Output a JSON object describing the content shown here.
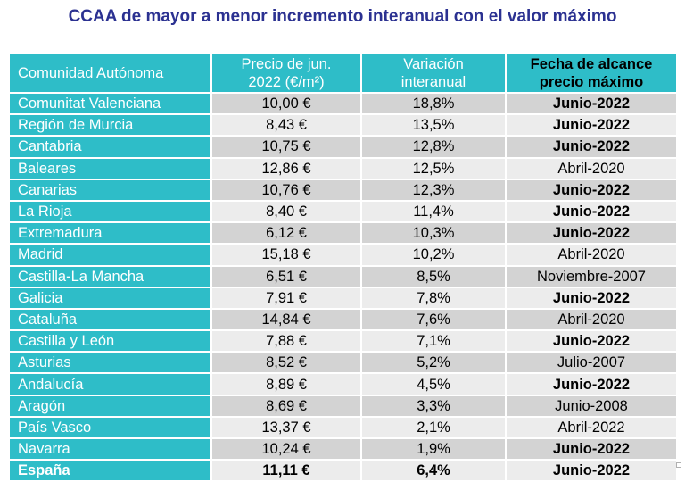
{
  "title": "CCAA de mayor a menor incremento interanual con el valor máximo",
  "table": {
    "headers": {
      "region": "Comunidad Autónoma",
      "price_line1": "Precio de jun.",
      "price_line2": "2022 (€/m²)",
      "change_line1": "Variación",
      "change_line2": "interanual",
      "max_line1": "Fecha de alcance",
      "max_line2": "precio máximo"
    },
    "rows": [
      {
        "region": "Comunitat Valenciana",
        "price": "10,00 €",
        "change": "18,8%",
        "max_date": "Junio-2022",
        "highlight": true
      },
      {
        "region": "Región de Murcia",
        "price": "8,43 €",
        "change": "13,5%",
        "max_date": "Junio-2022",
        "highlight": true
      },
      {
        "region": "Cantabria",
        "price": "10,75 €",
        "change": "12,8%",
        "max_date": "Junio-2022",
        "highlight": true
      },
      {
        "region": "Baleares",
        "price": "12,86 €",
        "change": "12,5%",
        "max_date": "Abril-2020",
        "highlight": false
      },
      {
        "region": "Canarias",
        "price": "10,76 €",
        "change": "12,3%",
        "max_date": "Junio-2022",
        "highlight": true
      },
      {
        "region": "La Rioja",
        "price": "8,40 €",
        "change": "11,4%",
        "max_date": "Junio-2022",
        "highlight": true
      },
      {
        "region": "Extremadura",
        "price": "6,12 €",
        "change": "10,3%",
        "max_date": "Junio-2022",
        "highlight": true
      },
      {
        "region": "Madrid",
        "price": "15,18 €",
        "change": "10,2%",
        "max_date": "Abril-2020",
        "highlight": false
      },
      {
        "region": "Castilla-La Mancha",
        "price": "6,51 €",
        "change": "8,5%",
        "max_date": "Noviembre-2007",
        "highlight": false
      },
      {
        "region": "Galicia",
        "price": "7,91 €",
        "change": "7,8%",
        "max_date": "Junio-2022",
        "highlight": true
      },
      {
        "region": "Cataluña",
        "price": "14,84 €",
        "change": "7,6%",
        "max_date": "Abril-2020",
        "highlight": false
      },
      {
        "region": "Castilla y León",
        "price": "7,88 €",
        "change": "7,1%",
        "max_date": "Junio-2022",
        "highlight": true
      },
      {
        "region": "Asturias",
        "price": "8,52 €",
        "change": "5,2%",
        "max_date": "Julio-2007",
        "highlight": false
      },
      {
        "region": "Andalucía",
        "price": "8,89 €",
        "change": "4,5%",
        "max_date": "Junio-2022",
        "highlight": true
      },
      {
        "region": "Aragón",
        "price": "8,69 €",
        "change": "3,3%",
        "max_date": "Junio-2008",
        "highlight": false
      },
      {
        "region": "País Vasco",
        "price": "13,37 €",
        "change": "2,1%",
        "max_date": "Abril-2022",
        "highlight": false
      },
      {
        "region": "Navarra",
        "price": "10,24 €",
        "change": "1,9%",
        "max_date": "Junio-2022",
        "highlight": true
      }
    ],
    "total": {
      "region": "España",
      "price": "11,11 €",
      "change": "6,4%",
      "max_date": "Junio-2022"
    }
  },
  "colors": {
    "title": "#2b3191",
    "header_bg": "#2ebdc8",
    "row_dark": "#d3d3d3",
    "row_light": "#ececec"
  }
}
